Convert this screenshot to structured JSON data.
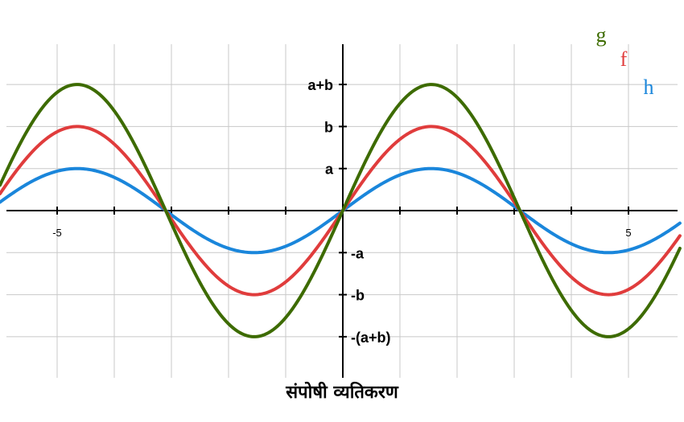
{
  "chart_data": {
    "type": "line",
    "title": "संपोषी व्यतिकरण",
    "xlim": [
      -6.0,
      5.9
    ],
    "ylim": [
      -3.9,
      3.9
    ],
    "period": 6.2,
    "grid": true,
    "x_gridlines": [
      -5,
      -4,
      -3,
      -2,
      -1,
      1,
      2,
      3,
      4,
      5
    ],
    "x_tick_labels": [
      {
        "x": -5,
        "text": "-5"
      },
      {
        "x": 5,
        "text": "5"
      }
    ],
    "y_tick_labels": [
      {
        "y": 3,
        "text": "a+b"
      },
      {
        "y": 2,
        "text": "b"
      },
      {
        "y": 1,
        "text": "a"
      },
      {
        "y": -1,
        "text": "-a"
      },
      {
        "y": -2,
        "text": "-b"
      },
      {
        "y": -3,
        "text": "-(a+b)"
      }
    ],
    "series": [
      {
        "name": "h",
        "amplitude": 1,
        "color": "#1a86db"
      },
      {
        "name": "f",
        "amplitude": 2,
        "color": "#e03c3c"
      },
      {
        "name": "g",
        "amplitude": 3,
        "color": "#3d6b00"
      }
    ],
    "legend": [
      {
        "text": "g",
        "color": "#3d6b00"
      },
      {
        "text": "f",
        "color": "#e03c3c"
      },
      {
        "text": "h",
        "color": "#1a86db"
      }
    ],
    "legend_position": "top-right"
  }
}
